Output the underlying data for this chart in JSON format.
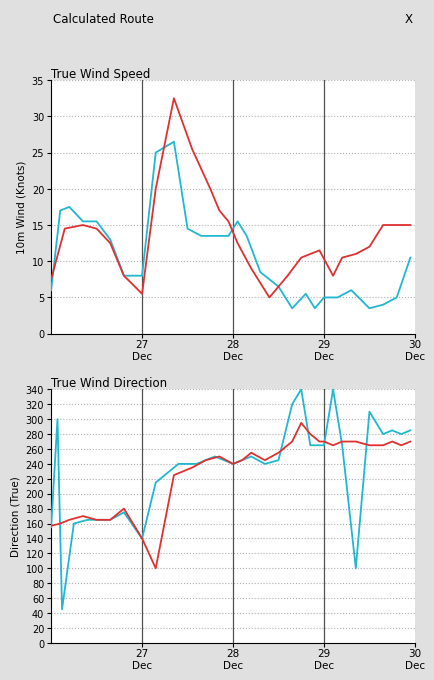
{
  "title_main": "Calculated Route",
  "title_x_label": "X",
  "plot1_title": "True Wind Speed",
  "plot1_ylabel": "10m Wind (Knots)",
  "plot1_ylim": [
    0,
    35
  ],
  "plot1_yticks": [
    0,
    5,
    10,
    15,
    20,
    25,
    30,
    35
  ],
  "plot2_title": "True Wind Direction",
  "plot2_ylabel": "Direction (True)",
  "plot2_ylim": [
    0,
    340
  ],
  "plot2_yticks": [
    0,
    20,
    40,
    60,
    80,
    100,
    120,
    140,
    160,
    180,
    200,
    220,
    240,
    260,
    280,
    300,
    320,
    340
  ],
  "x_min": 26.0,
  "x_max": 30.0,
  "x_tick_positions": [
    27.0,
    28.0,
    29.0,
    30.0
  ],
  "x_tick_labels": [
    "27\nDec",
    "28\nDec",
    "29\nDec",
    "30\nDec"
  ],
  "vlines": [
    27.0,
    28.0,
    29.0
  ],
  "color_red": "#e03030",
  "color_cyan": "#20b8d0",
  "background": "#e0e0e0",
  "plot_bg": "#ffffff",
  "grid_color": "#b0b0b0",
  "wind_speed_red_x": [
    26.0,
    26.15,
    26.35,
    26.5,
    26.65,
    26.8,
    27.0,
    27.15,
    27.35,
    27.55,
    27.75,
    27.85,
    27.95,
    28.05,
    28.2,
    28.4,
    28.6,
    28.75,
    28.85,
    28.95,
    29.1,
    29.2,
    29.35,
    29.5,
    29.65,
    29.8,
    29.95
  ],
  "wind_speed_red_y": [
    7.5,
    14.5,
    15.0,
    14.5,
    12.5,
    8.0,
    5.5,
    20.0,
    32.5,
    25.5,
    20.0,
    17.0,
    15.5,
    12.5,
    9.0,
    5.0,
    8.0,
    10.5,
    11.0,
    11.5,
    8.0,
    10.5,
    11.0,
    12.0,
    15.0,
    15.0,
    15.0
  ],
  "wind_speed_cyan_x": [
    26.0,
    26.1,
    26.2,
    26.35,
    26.5,
    26.65,
    26.8,
    27.0,
    27.15,
    27.35,
    27.5,
    27.65,
    27.8,
    27.95,
    28.05,
    28.15,
    28.3,
    28.5,
    28.65,
    28.8,
    28.9,
    29.0,
    29.15,
    29.3,
    29.5,
    29.65,
    29.8,
    29.95
  ],
  "wind_speed_cyan_y": [
    6.0,
    17.0,
    17.5,
    15.5,
    15.5,
    13.0,
    8.0,
    8.0,
    25.0,
    26.5,
    14.5,
    13.5,
    13.5,
    13.5,
    15.5,
    13.5,
    8.5,
    6.5,
    3.5,
    5.5,
    3.5,
    5.0,
    5.0,
    6.0,
    3.5,
    4.0,
    5.0,
    10.5
  ],
  "wind_dir_red_x": [
    26.0,
    26.1,
    26.2,
    26.35,
    26.5,
    26.65,
    26.8,
    27.0,
    27.15,
    27.35,
    27.55,
    27.7,
    27.85,
    28.0,
    28.1,
    28.2,
    28.35,
    28.5,
    28.65,
    28.75,
    28.85,
    28.95,
    29.0,
    29.1,
    29.2,
    29.35,
    29.5,
    29.65,
    29.75,
    29.85,
    29.95
  ],
  "wind_dir_red_y": [
    157,
    160,
    165,
    170,
    165,
    165,
    180,
    140,
    100,
    225,
    235,
    245,
    250,
    240,
    245,
    255,
    245,
    255,
    270,
    295,
    280,
    270,
    270,
    265,
    270,
    270,
    265,
    265,
    270,
    265,
    270
  ],
  "wind_dir_cyan_x": [
    26.0,
    26.07,
    26.12,
    26.25,
    26.4,
    26.55,
    26.65,
    26.8,
    27.0,
    27.15,
    27.4,
    27.6,
    27.8,
    28.0,
    28.1,
    28.2,
    28.35,
    28.5,
    28.65,
    28.75,
    28.85,
    28.9,
    29.0,
    29.1,
    29.2,
    29.35,
    29.5,
    29.65,
    29.75,
    29.85,
    29.95
  ],
  "wind_dir_cyan_y": [
    155,
    300,
    45,
    160,
    165,
    165,
    165,
    175,
    140,
    215,
    240,
    240,
    250,
    240,
    245,
    250,
    240,
    245,
    320,
    340,
    265,
    265,
    265,
    340,
    265,
    100,
    310,
    280,
    285,
    280,
    285
  ]
}
